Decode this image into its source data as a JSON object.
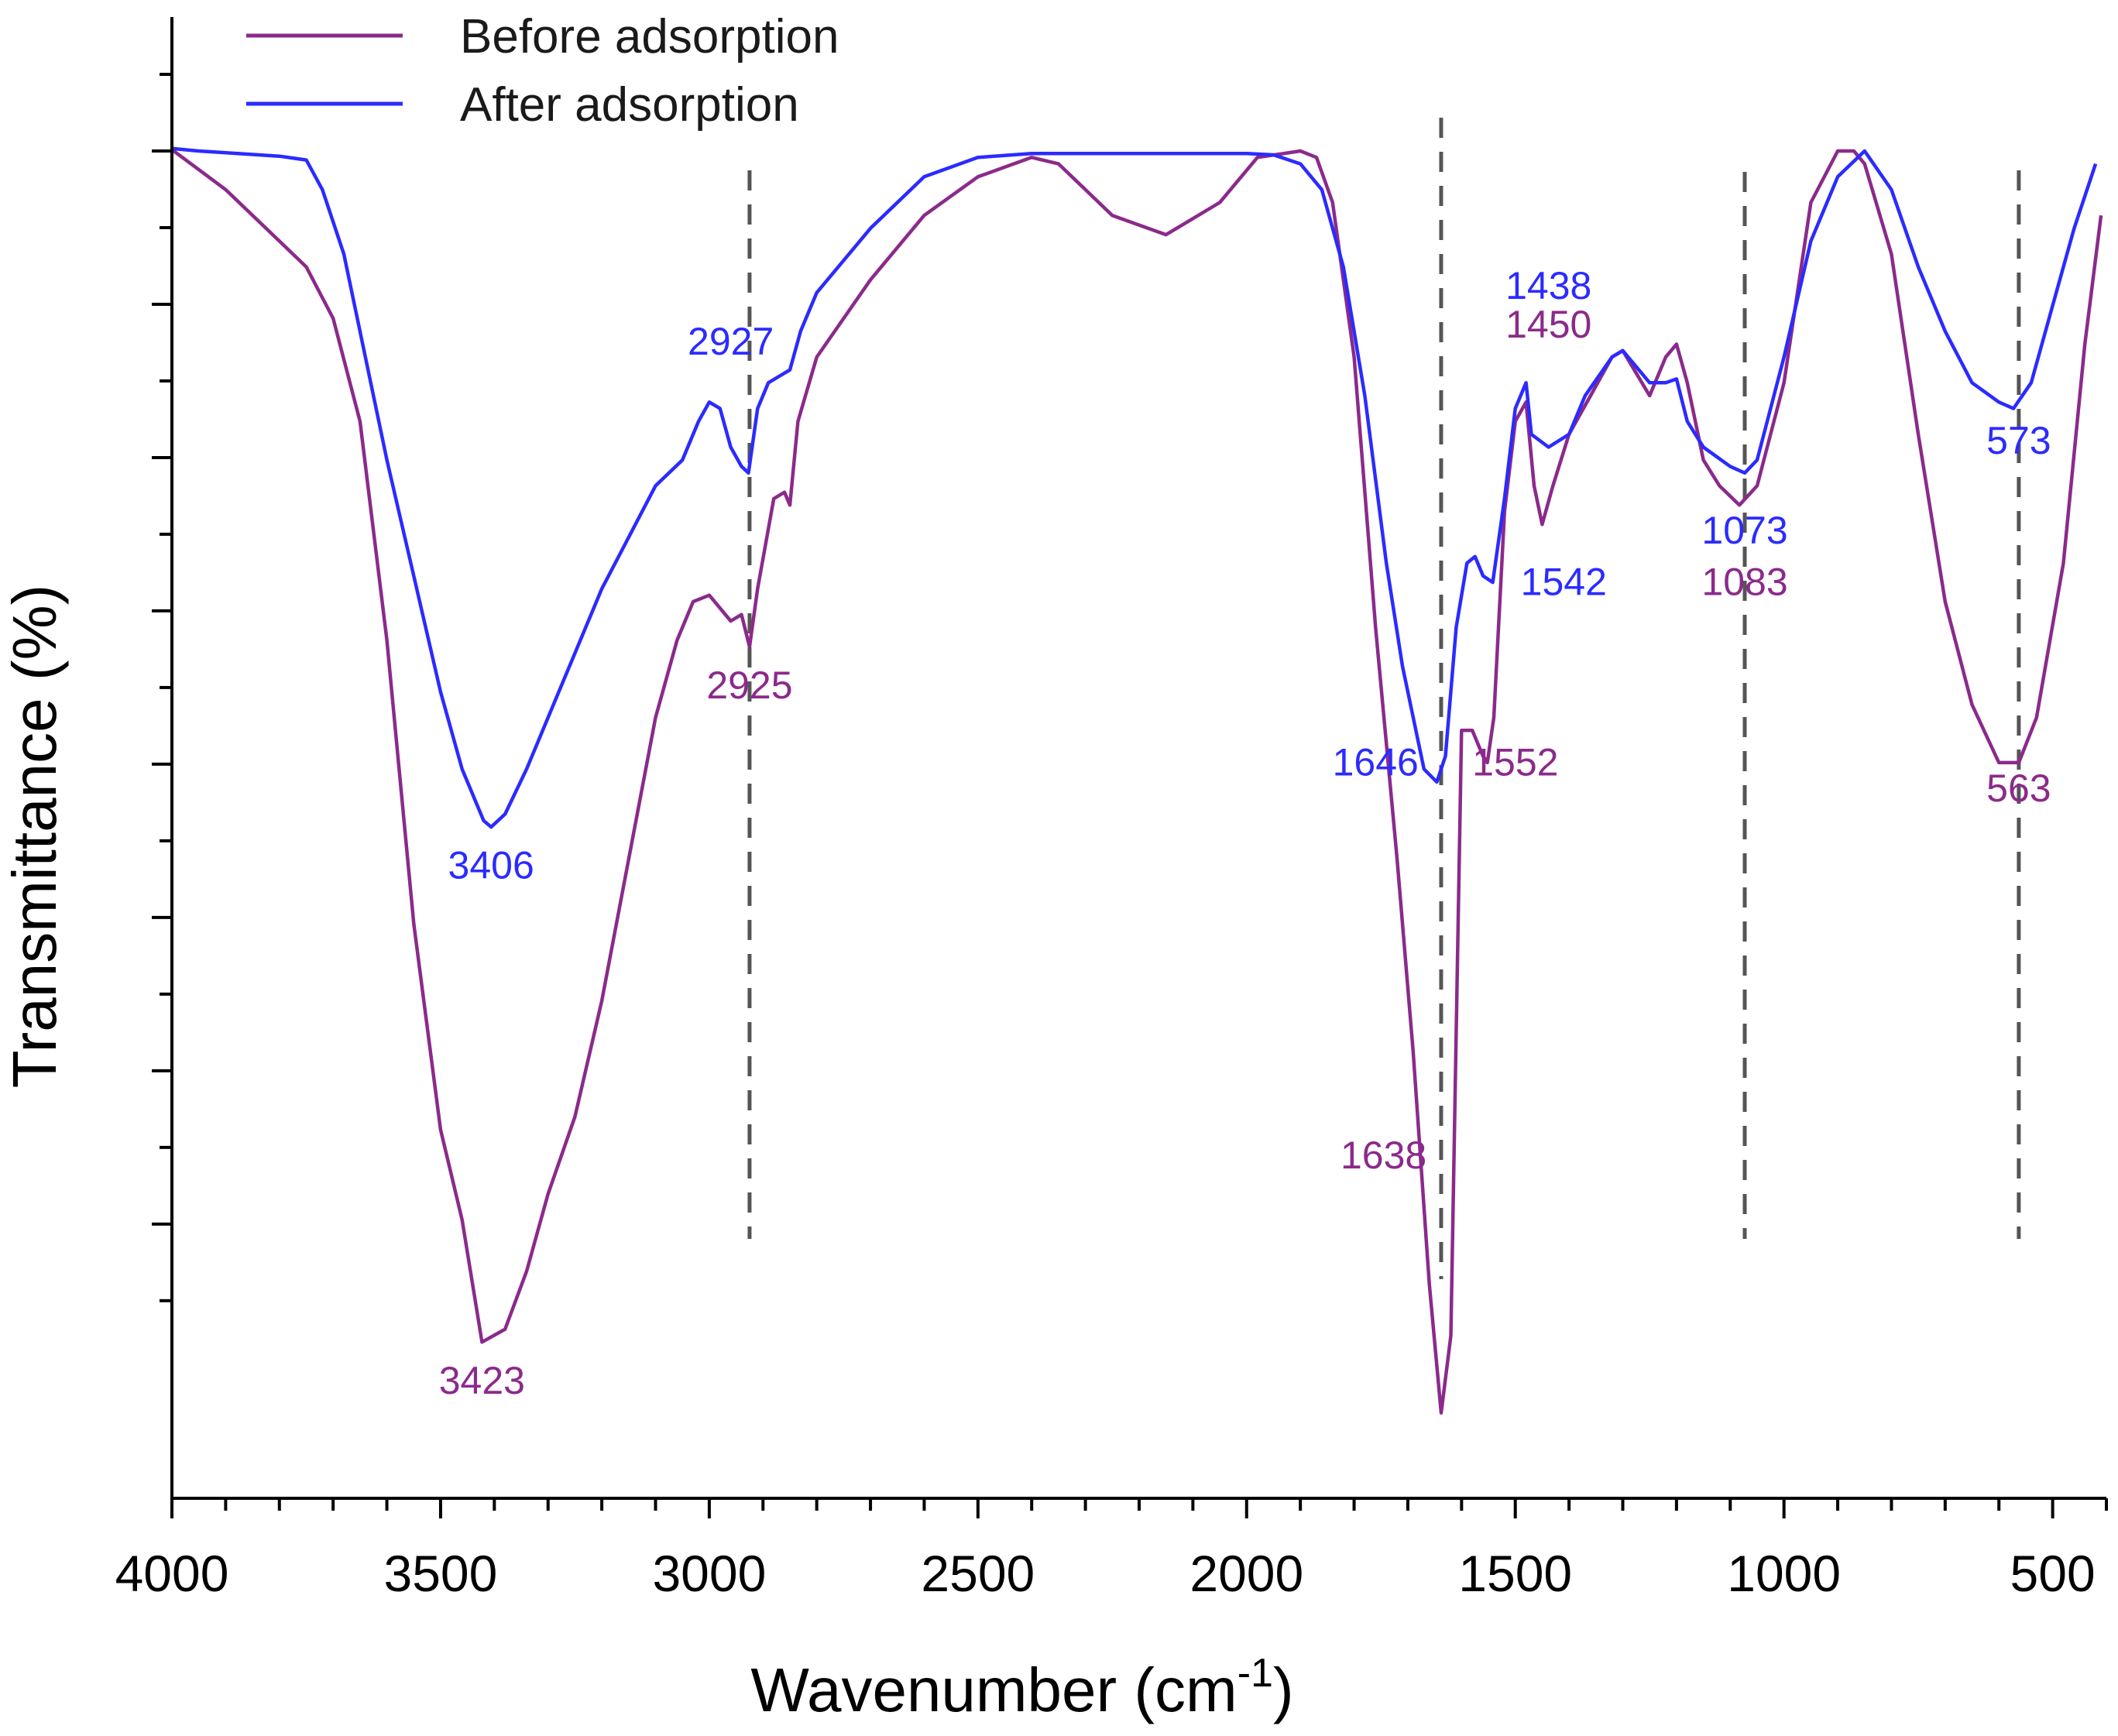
{
  "chart_data": {
    "type": "line",
    "title": "",
    "xlabel_main": "Wavenumber (cm",
    "xlabel_sup": "-1",
    "xlabel_close": ")",
    "ylabel": "Transmittance (%)",
    "xlim": [
      4000,
      400
    ],
    "ylim": [
      0,
      100
    ],
    "x_ticks": [
      4000,
      3500,
      3000,
      2500,
      2000,
      1500,
      1000,
      500
    ],
    "x_tick_labels": [
      "4000",
      "3500",
      "3000",
      "2500",
      "2000",
      "1500",
      "1000",
      "500"
    ],
    "y_tick_labels_visible": false,
    "legend": {
      "position": "top-left",
      "entries": [
        "Before adsorption",
        "After adsorption"
      ]
    },
    "reference_lines": [
      2925,
      1638,
      1073,
      563
    ],
    "series": [
      {
        "name": "Before adsorption",
        "color": "#8B2A8B",
        "points": [
          [
            4000,
            100.1
          ],
          [
            3900,
            97
          ],
          [
            3800,
            93
          ],
          [
            3750,
            91
          ],
          [
            3700,
            87
          ],
          [
            3650,
            79
          ],
          [
            3600,
            62
          ],
          [
            3550,
            40
          ],
          [
            3500,
            24
          ],
          [
            3460,
            17
          ],
          [
            3423,
            7.5
          ],
          [
            3380,
            8.5
          ],
          [
            3340,
            13
          ],
          [
            3300,
            19
          ],
          [
            3250,
            25
          ],
          [
            3200,
            34
          ],
          [
            3150,
            45
          ],
          [
            3100,
            56
          ],
          [
            3060,
            62
          ],
          [
            3030,
            65
          ],
          [
            3000,
            65.5
          ],
          [
            2960,
            63.5
          ],
          [
            2940,
            64
          ],
          [
            2925,
            61.5
          ],
          [
            2910,
            66
          ],
          [
            2880,
            73
          ],
          [
            2860,
            73.5
          ],
          [
            2850,
            72.5
          ],
          [
            2835,
            79
          ],
          [
            2800,
            84
          ],
          [
            2700,
            90
          ],
          [
            2600,
            95
          ],
          [
            2500,
            98
          ],
          [
            2400,
            99.5
          ],
          [
            2350,
            99
          ],
          [
            2250,
            95
          ],
          [
            2150,
            93.5
          ],
          [
            2050,
            96
          ],
          [
            1980,
            99.5
          ],
          [
            1900,
            100
          ],
          [
            1870,
            99.5
          ],
          [
            1840,
            96
          ],
          [
            1800,
            84
          ],
          [
            1760,
            63
          ],
          [
            1720,
            45
          ],
          [
            1690,
            30
          ],
          [
            1660,
            12
          ],
          [
            1638,
            2
          ],
          [
            1620,
            8
          ],
          [
            1600,
            55
          ],
          [
            1580,
            55
          ],
          [
            1560,
            53
          ],
          [
            1552,
            52.5
          ],
          [
            1540,
            56
          ],
          [
            1520,
            72
          ],
          [
            1500,
            79
          ],
          [
            1480,
            80.5
          ],
          [
            1465,
            74
          ],
          [
            1450,
            71
          ],
          [
            1430,
            74
          ],
          [
            1400,
            78
          ],
          [
            1360,
            81
          ],
          [
            1320,
            84
          ],
          [
            1300,
            84.5
          ],
          [
            1250,
            81
          ],
          [
            1220,
            84
          ],
          [
            1200,
            85
          ],
          [
            1180,
            82
          ],
          [
            1150,
            76
          ],
          [
            1120,
            74
          ],
          [
            1083,
            72.5
          ],
          [
            1050,
            74
          ],
          [
            1000,
            82
          ],
          [
            950,
            96
          ],
          [
            900,
            100
          ],
          [
            870,
            100
          ],
          [
            850,
            99
          ],
          [
            800,
            92
          ],
          [
            750,
            78
          ],
          [
            700,
            65
          ],
          [
            650,
            57
          ],
          [
            600,
            52.5
          ],
          [
            563,
            52.5
          ],
          [
            530,
            56
          ],
          [
            480,
            68
          ],
          [
            440,
            85
          ],
          [
            410,
            95
          ]
        ]
      },
      {
        "name": "After adsorption",
        "color": "#2B2BFF",
        "points": [
          [
            4000,
            100.2
          ],
          [
            3950,
            100
          ],
          [
            3800,
            99.6
          ],
          [
            3750,
            99.3
          ],
          [
            3720,
            97
          ],
          [
            3680,
            92
          ],
          [
            3640,
            84
          ],
          [
            3600,
            76
          ],
          [
            3550,
            67
          ],
          [
            3500,
            58
          ],
          [
            3460,
            52
          ],
          [
            3420,
            48
          ],
          [
            3406,
            47.5
          ],
          [
            3380,
            48.5
          ],
          [
            3340,
            52
          ],
          [
            3300,
            56
          ],
          [
            3250,
            61
          ],
          [
            3200,
            66
          ],
          [
            3150,
            70
          ],
          [
            3100,
            74
          ],
          [
            3050,
            76
          ],
          [
            3020,
            79
          ],
          [
            3000,
            80.5
          ],
          [
            2980,
            80
          ],
          [
            2960,
            77
          ],
          [
            2940,
            75.5
          ],
          [
            2927,
            75
          ],
          [
            2910,
            80
          ],
          [
            2890,
            82
          ],
          [
            2870,
            82.5
          ],
          [
            2850,
            83
          ],
          [
            2830,
            86
          ],
          [
            2800,
            89
          ],
          [
            2700,
            94
          ],
          [
            2600,
            98
          ],
          [
            2500,
            99.5
          ],
          [
            2400,
            99.8
          ],
          [
            2000,
            99.8
          ],
          [
            1950,
            99.7
          ],
          [
            1900,
            99
          ],
          [
            1860,
            97
          ],
          [
            1820,
            91
          ],
          [
            1780,
            81
          ],
          [
            1740,
            68
          ],
          [
            1710,
            60
          ],
          [
            1690,
            56
          ],
          [
            1670,
            52
          ],
          [
            1646,
            51
          ],
          [
            1630,
            53
          ],
          [
            1610,
            63
          ],
          [
            1590,
            68
          ],
          [
            1575,
            68.5
          ],
          [
            1560,
            67
          ],
          [
            1542,
            66.5
          ],
          [
            1520,
            73
          ],
          [
            1500,
            80
          ],
          [
            1480,
            82
          ],
          [
            1470,
            78
          ],
          [
            1438,
            77
          ],
          [
            1400,
            78
          ],
          [
            1370,
            81
          ],
          [
            1320,
            84
          ],
          [
            1300,
            84.5
          ],
          [
            1250,
            82
          ],
          [
            1220,
            82
          ],
          [
            1200,
            82.3
          ],
          [
            1180,
            79
          ],
          [
            1150,
            77
          ],
          [
            1100,
            75.5
          ],
          [
            1073,
            75
          ],
          [
            1050,
            76
          ],
          [
            1000,
            84
          ],
          [
            950,
            93
          ],
          [
            900,
            98
          ],
          [
            850,
            100
          ],
          [
            800,
            97
          ],
          [
            750,
            91
          ],
          [
            700,
            86
          ],
          [
            650,
            82
          ],
          [
            600,
            80.5
          ],
          [
            573,
            80
          ],
          [
            540,
            82
          ],
          [
            500,
            88
          ],
          [
            460,
            94
          ],
          [
            420,
            99
          ]
        ]
      }
    ],
    "annotations": [
      {
        "text": "3406",
        "series": "After adsorption",
        "x": 3406,
        "y": 43.5,
        "anchor": "middle"
      },
      {
        "text": "3423",
        "series": "Before adsorption",
        "x": 3423,
        "y": 3.5,
        "anchor": "middle"
      },
      {
        "text": "2927",
        "series": "After adsorption",
        "x": 2960,
        "y": 84.2,
        "anchor": "middle"
      },
      {
        "text": "2925",
        "series": "Before adsorption",
        "x": 2925,
        "y": 57.5,
        "anchor": "middle"
      },
      {
        "text": "1646",
        "series": "After adsorption",
        "x": 1680,
        "y": 51.5,
        "anchor": "end"
      },
      {
        "text": "1638",
        "series": "Before adsorption",
        "x": 1665,
        "y": 21,
        "anchor": "end"
      },
      {
        "text": "1552",
        "series": "Before adsorption",
        "x": 1580,
        "y": 51.5,
        "anchor": "start"
      },
      {
        "text": "1542",
        "series": "After adsorption",
        "x": 1490,
        "y": 65.5,
        "anchor": "start"
      },
      {
        "text": "1438",
        "series": "After adsorption",
        "x": 1438,
        "y": 88.5,
        "anchor": "middle"
      },
      {
        "text": "1450",
        "series": "Before adsorption",
        "x": 1438,
        "y": 85.5,
        "anchor": "middle"
      },
      {
        "text": "1073",
        "series": "After adsorption",
        "x": 1073,
        "y": 69.5,
        "anchor": "middle"
      },
      {
        "text": "1083",
        "series": "Before adsorption",
        "x": 1073,
        "y": 65.5,
        "anchor": "middle"
      },
      {
        "text": "573",
        "series": "After adsorption",
        "x": 563,
        "y": 76.5,
        "anchor": "middle"
      },
      {
        "text": "563",
        "series": "Before adsorption",
        "x": 563,
        "y": 49.5,
        "anchor": "middle"
      }
    ]
  }
}
